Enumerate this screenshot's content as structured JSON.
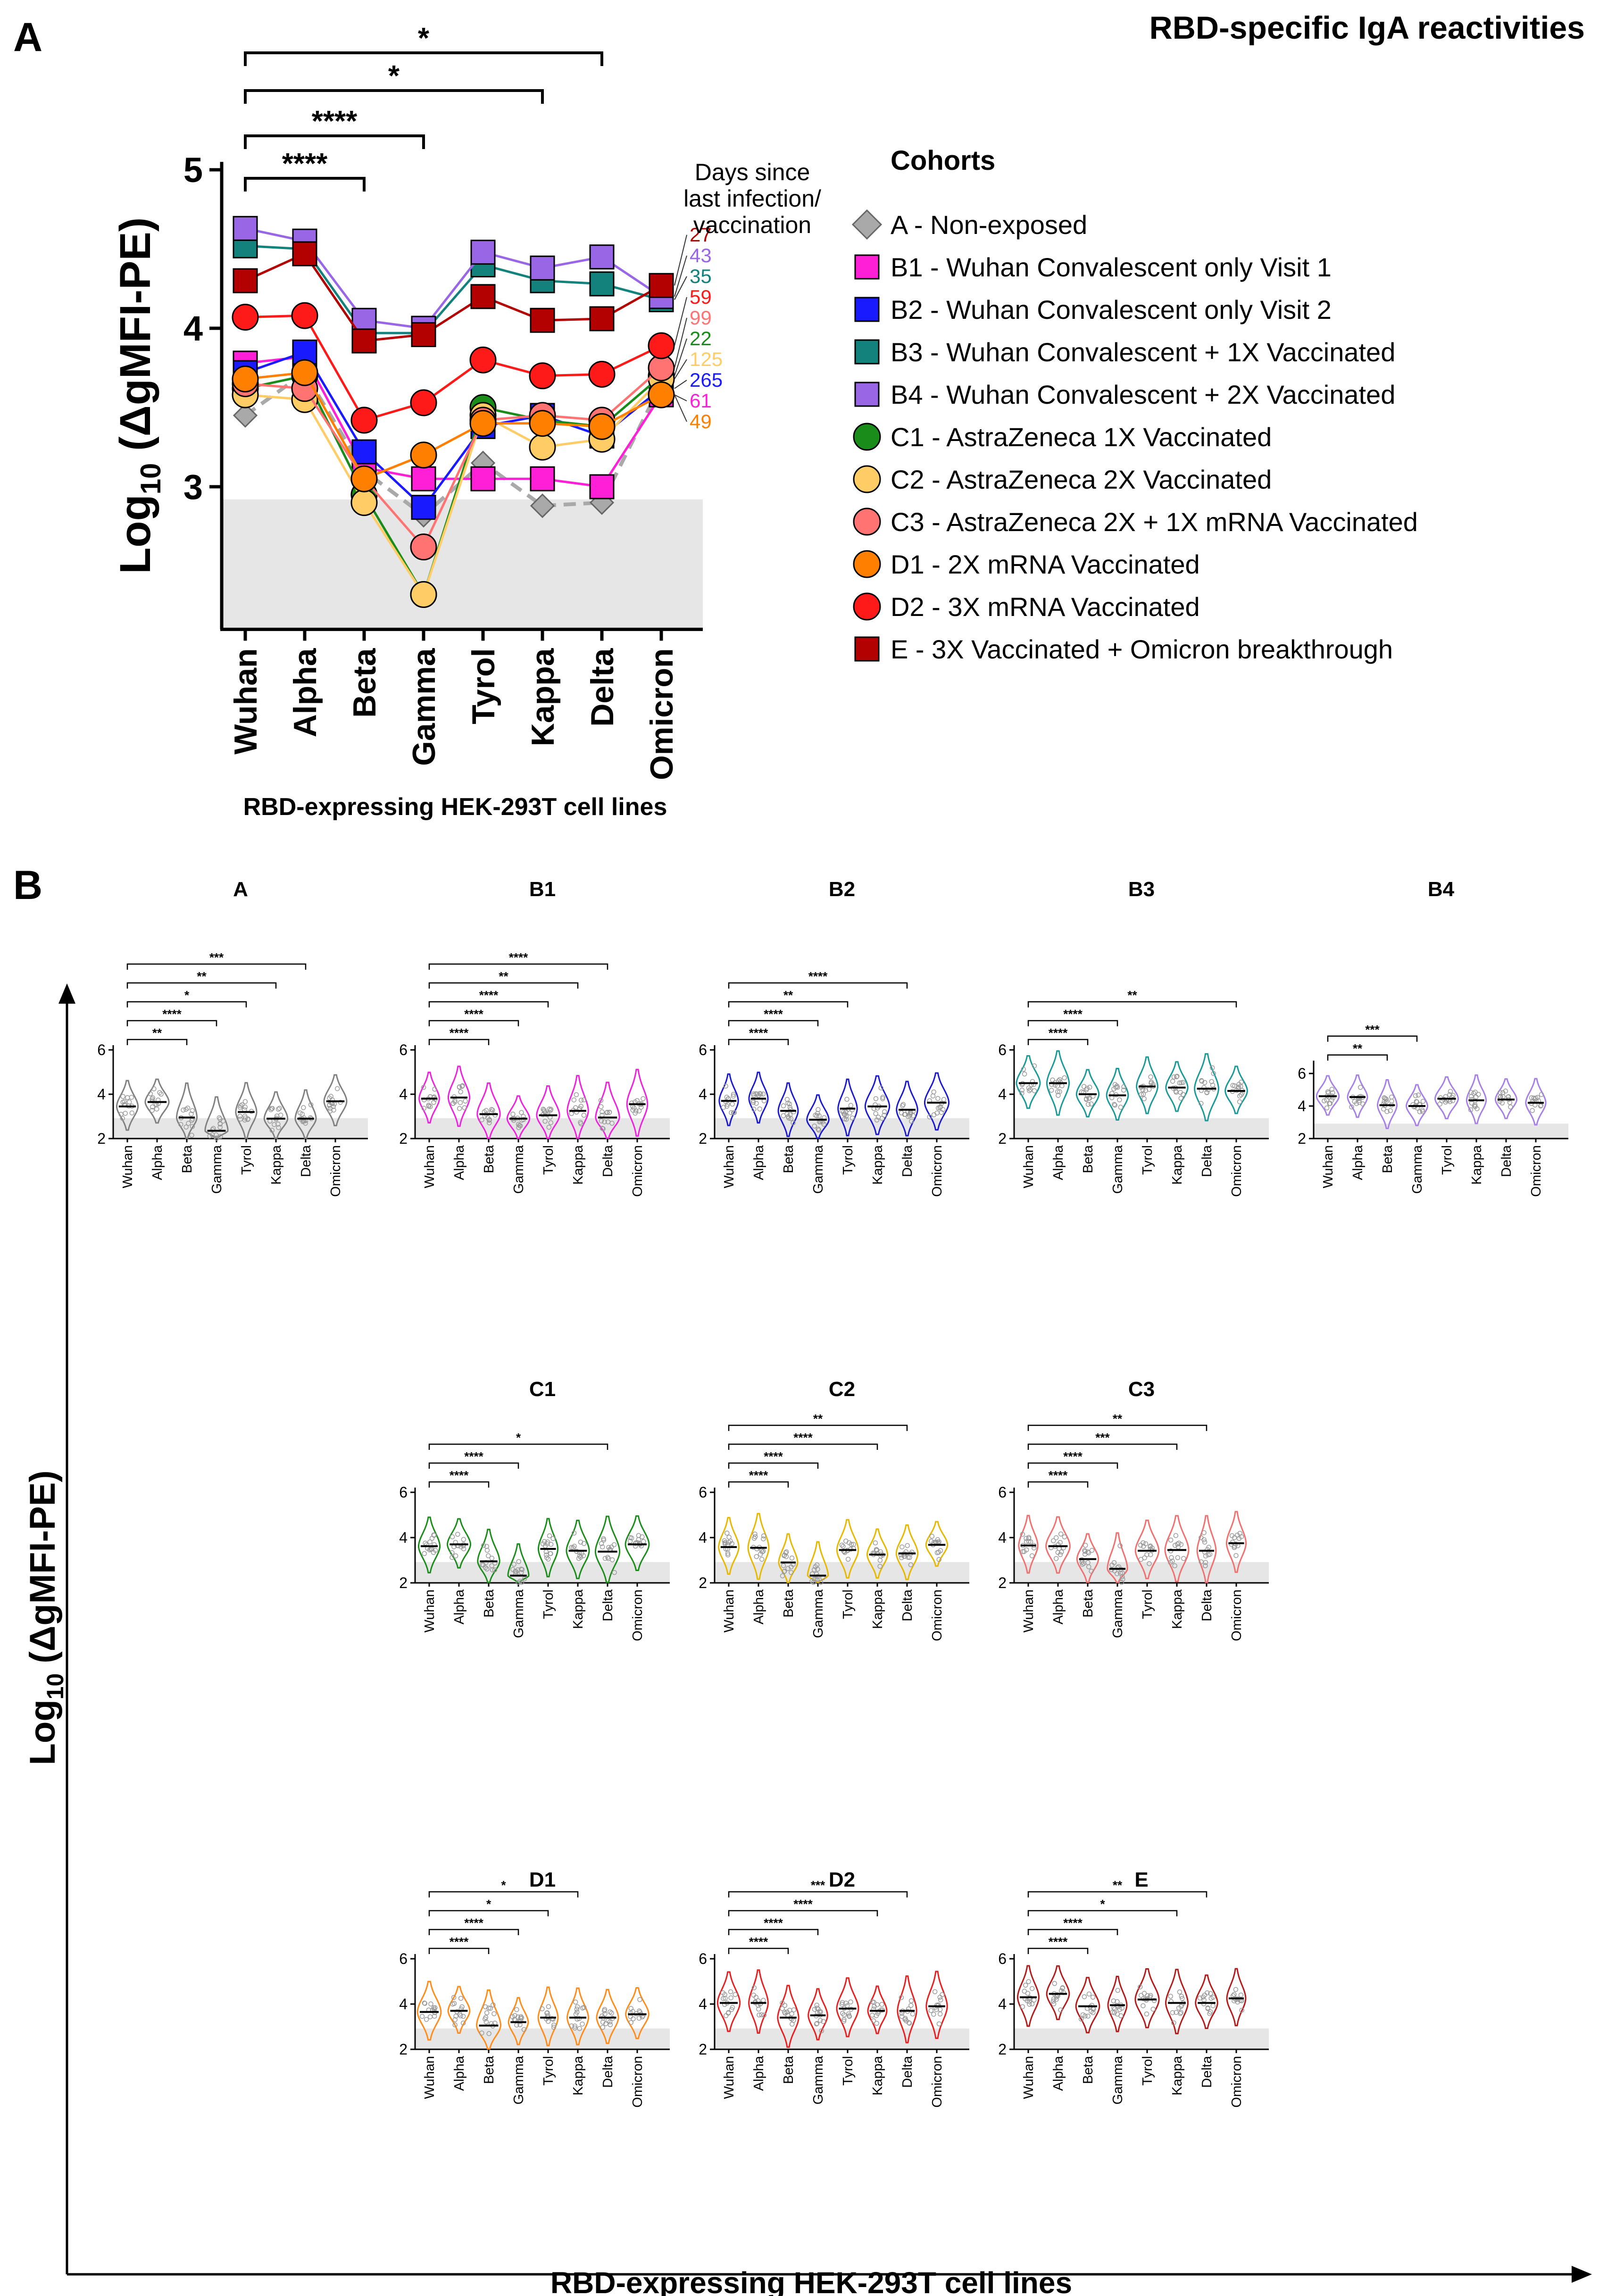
{
  "header": {
    "title": "RBD-specific IgA reactivities"
  },
  "panel_labels": {
    "a": "A",
    "b": "B"
  },
  "chart_data": [
    {
      "type": "line",
      "panel": "A",
      "title": "RBD-specific IgA reactivities",
      "xlabel": "RBD-expressing HEK-293T cell lines",
      "ylabel": "Log10 (ΔgMFI-PE)",
      "ylabel_parts": {
        "base": "Log",
        "sub": "10",
        "rest": " (ΔgMFI-PE)"
      },
      "ylim": [
        2.1,
        5.05
      ],
      "yticks": [
        "5",
        "4",
        "3"
      ],
      "yticks_values": [
        5,
        4,
        3
      ],
      "threshold": 2.92,
      "categories": [
        "Wuhan",
        "Alpha",
        "Beta",
        "Gamma",
        "Tyrol",
        "Kappa",
        "Delta",
        "Omicron"
      ],
      "days_label": [
        "Days since",
        "last infection/",
        "vaccination"
      ],
      "legend_title": "Cohorts",
      "significance": [
        {
          "from": 0,
          "to": 2,
          "label": "****"
        },
        {
          "from": 0,
          "to": 3,
          "label": "****"
        },
        {
          "from": 0,
          "to": 5,
          "label": "*"
        },
        {
          "from": 0,
          "to": 6,
          "label": "*"
        }
      ],
      "series": [
        {
          "id": "A",
          "name": "A - Non-exposed",
          "color": "#a9a9a9",
          "marker": "diamond",
          "dashed": true,
          "days": "",
          "values": [
            3.45,
            3.72,
            3.1,
            2.82,
            3.15,
            2.88,
            2.9,
            3.65
          ]
        },
        {
          "id": "B1",
          "name": "B1 - Wuhan Convalescent only Visit 1",
          "color": "#ff1fd6",
          "marker": "square",
          "dashed": false,
          "days": "61",
          "values": [
            3.78,
            3.82,
            3.12,
            3.05,
            3.05,
            3.05,
            3.0,
            3.58
          ]
        },
        {
          "id": "B2",
          "name": "B2 - Wuhan Convalescent only Visit 2",
          "color": "#1a1aff",
          "marker": "square",
          "dashed": false,
          "days": "265",
          "values": [
            3.72,
            3.85,
            3.22,
            2.87,
            3.38,
            3.45,
            3.32,
            3.62
          ]
        },
        {
          "id": "B3",
          "name": "B3 - Wuhan Convalescent + 1X Vaccinated",
          "color": "#13827c",
          "marker": "square",
          "dashed": false,
          "days": "35",
          "values": [
            4.52,
            4.5,
            3.97,
            3.97,
            4.4,
            4.3,
            4.28,
            4.18
          ]
        },
        {
          "id": "B4",
          "name": "B4 - Wuhan Convalescent + 2X Vaccinated",
          "color": "#9966e6",
          "marker": "square",
          "dashed": false,
          "days": "43",
          "values": [
            4.63,
            4.55,
            4.05,
            4.0,
            4.48,
            4.38,
            4.45,
            4.2
          ]
        },
        {
          "id": "C1",
          "name": "C1 - AstraZeneca 1X Vaccinated",
          "color": "#1a8c1a",
          "marker": "circle",
          "dashed": false,
          "days": "22",
          "values": [
            3.62,
            3.7,
            2.95,
            2.32,
            3.5,
            3.42,
            3.38,
            3.7
          ]
        },
        {
          "id": "C2",
          "name": "C2 - AstraZeneca 2X Vaccinated",
          "color": "#ffcc66",
          "marker": "circle",
          "dashed": false,
          "days": "125",
          "values": [
            3.58,
            3.55,
            2.9,
            2.32,
            3.45,
            3.25,
            3.3,
            3.68
          ]
        },
        {
          "id": "C3",
          "name": "C3 - AstraZeneca 2X + 1X mRNA Vaccinated",
          "color": "#ff7373",
          "marker": "circle",
          "dashed": false,
          "days": "99",
          "values": [
            3.65,
            3.62,
            3.05,
            2.62,
            3.42,
            3.45,
            3.42,
            3.75
          ]
        },
        {
          "id": "D1",
          "name": "D1 - 2X mRNA Vaccinated",
          "color": "#ff8000",
          "marker": "circle",
          "dashed": false,
          "days": "49",
          "values": [
            3.68,
            3.72,
            3.05,
            3.2,
            3.4,
            3.4,
            3.38,
            3.58
          ]
        },
        {
          "id": "D2",
          "name": "D2 - 3X mRNA Vaccinated",
          "color": "#ff1a1a",
          "marker": "circle",
          "dashed": false,
          "days": "59",
          "values": [
            4.07,
            4.08,
            3.42,
            3.53,
            3.8,
            3.7,
            3.71,
            3.89
          ]
        },
        {
          "id": "E",
          "name": "E - 3X Vaccinated + Omicron breakthrough",
          "color": "#b30000",
          "marker": "square",
          "dashed": false,
          "days": "27",
          "values": [
            4.3,
            4.47,
            3.92,
            3.96,
            4.2,
            4.05,
            4.06,
            4.27
          ]
        }
      ]
    },
    {
      "type": "violin",
      "panel": "B",
      "xlabel": "RBD-expressing HEK-293T cell lines",
      "ylabel": "Log10 (ΔgMFI-PE)",
      "ylabel_parts": {
        "base": "Log",
        "sub": "10",
        "rest": " (ΔgMFI-PE)"
      },
      "categories": [
        "Wuhan",
        "Alpha",
        "Beta",
        "Gamma",
        "Tyrol",
        "Kappa",
        "Delta",
        "Omicron"
      ],
      "threshold": 2.92,
      "subplots": [
        {
          "title": "A",
          "color": "#808080",
          "yticks": [
            "6",
            "4",
            "2"
          ],
          "yticks_values": [
            6,
            4,
            2
          ],
          "ylim": [
            2,
            6
          ],
          "medians": [
            3.45,
            3.65,
            2.95,
            2.35,
            3.2,
            2.9,
            2.9,
            3.68
          ],
          "significance": [
            {
              "to": 2,
              "label": "**"
            },
            {
              "to": 3,
              "label": "****"
            },
            {
              "to": 4,
              "label": "*"
            },
            {
              "to": 5,
              "label": "**"
            },
            {
              "to": 6,
              "label": "***"
            }
          ]
        },
        {
          "title": "B1",
          "color": "#ee22dd",
          "yticks": [
            "6",
            "4",
            "2"
          ],
          "yticks_values": [
            6,
            4,
            2
          ],
          "ylim": [
            2,
            6
          ],
          "medians": [
            3.8,
            3.85,
            3.1,
            2.9,
            3.05,
            3.25,
            2.95,
            3.55
          ],
          "significance": [
            {
              "to": 2,
              "label": "****"
            },
            {
              "to": 3,
              "label": "****"
            },
            {
              "to": 4,
              "label": "****"
            },
            {
              "to": 5,
              "label": "**"
            },
            {
              "to": 6,
              "label": "****"
            }
          ]
        },
        {
          "title": "B2",
          "color": "#1a1acc",
          "yticks": [
            "6",
            "4",
            "2"
          ],
          "yticks_values": [
            6,
            4,
            2
          ],
          "ylim": [
            2,
            6
          ],
          "medians": [
            3.7,
            3.8,
            3.25,
            2.85,
            3.35,
            3.45,
            3.3,
            3.62
          ],
          "significance": [
            {
              "to": 2,
              "label": "****"
            },
            {
              "to": 3,
              "label": "****"
            },
            {
              "to": 4,
              "label": "**"
            },
            {
              "to": 6,
              "label": "****"
            }
          ]
        },
        {
          "title": "B3",
          "color": "#1a9999",
          "yticks": [
            "6",
            "4",
            "2"
          ],
          "yticks_values": [
            6,
            4,
            2
          ],
          "ylim": [
            2,
            6
          ],
          "medians": [
            4.5,
            4.5,
            4.0,
            3.95,
            4.35,
            4.3,
            4.25,
            4.15
          ],
          "significance": [
            {
              "to": 2,
              "label": "****"
            },
            {
              "to": 3,
              "label": "****"
            },
            {
              "to": 7,
              "label": "**"
            }
          ]
        },
        {
          "title": "B4",
          "color": "#a680e6",
          "yticks": [
            "6",
            "4",
            "2"
          ],
          "yticks_values": [
            6,
            4,
            2
          ],
          "ylim": [
            2,
            6.5
          ],
          "medians": [
            4.6,
            4.55,
            4.05,
            4.0,
            4.45,
            4.35,
            4.4,
            4.2
          ],
          "significance": [
            {
              "to": 2,
              "label": "**"
            },
            {
              "to": 3,
              "label": "***"
            }
          ]
        },
        {
          "title": "C1",
          "color": "#1a8c1a",
          "yticks": [
            "6",
            "4",
            "2"
          ],
          "yticks_values": [
            6,
            4,
            2
          ],
          "ylim": [
            2,
            6
          ],
          "medians": [
            3.62,
            3.7,
            2.95,
            2.32,
            3.5,
            3.42,
            3.38,
            3.7
          ],
          "significance": [
            {
              "to": 2,
              "label": "****"
            },
            {
              "to": 3,
              "label": "****"
            },
            {
              "to": 6,
              "label": "*"
            }
          ]
        },
        {
          "title": "C2",
          "color": "#e6b800",
          "yticks": [
            "6",
            "4",
            "2"
          ],
          "yticks_values": [
            6,
            4,
            2
          ],
          "ylim": [
            2,
            6
          ],
          "medians": [
            3.58,
            3.55,
            2.9,
            2.32,
            3.45,
            3.25,
            3.3,
            3.68
          ],
          "significance": [
            {
              "to": 2,
              "label": "****"
            },
            {
              "to": 3,
              "label": "****"
            },
            {
              "to": 5,
              "label": "****"
            },
            {
              "to": 6,
              "label": "**"
            }
          ]
        },
        {
          "title": "C3",
          "color": "#f07070",
          "yticks": [
            "6",
            "4",
            "2"
          ],
          "yticks_values": [
            6,
            4,
            2
          ],
          "ylim": [
            2,
            6
          ],
          "medians": [
            3.65,
            3.62,
            3.05,
            2.62,
            3.42,
            3.45,
            3.42,
            3.75
          ],
          "significance": [
            {
              "to": 2,
              "label": "****"
            },
            {
              "to": 3,
              "label": "****"
            },
            {
              "to": 5,
              "label": "***"
            },
            {
              "to": 6,
              "label": "**"
            }
          ]
        },
        {
          "title": "D1",
          "color": "#ff8c1a",
          "yticks": [
            "6",
            "4",
            "2"
          ],
          "yticks_values": [
            6,
            4,
            2
          ],
          "ylim": [
            2,
            6
          ],
          "medians": [
            3.65,
            3.7,
            3.05,
            3.2,
            3.4,
            3.4,
            3.4,
            3.55
          ],
          "significance": [
            {
              "to": 2,
              "label": "****"
            },
            {
              "to": 3,
              "label": "****"
            },
            {
              "to": 4,
              "label": "*"
            },
            {
              "to": 5,
              "label": "*"
            }
          ]
        },
        {
          "title": "D2",
          "color": "#e62020",
          "yticks": [
            "6",
            "4",
            "2"
          ],
          "yticks_values": [
            6,
            4,
            2
          ],
          "ylim": [
            2,
            6
          ],
          "medians": [
            4.05,
            4.05,
            3.4,
            3.5,
            3.8,
            3.7,
            3.7,
            3.9
          ],
          "significance": [
            {
              "to": 2,
              "label": "****"
            },
            {
              "to": 3,
              "label": "****"
            },
            {
              "to": 5,
              "label": "****"
            },
            {
              "to": 6,
              "label": "***"
            }
          ]
        },
        {
          "title": "E",
          "color": "#b31a1a",
          "yticks": [
            "6",
            "4",
            "2"
          ],
          "yticks_values": [
            6,
            4,
            2
          ],
          "ylim": [
            2,
            6
          ],
          "medians": [
            4.3,
            4.45,
            3.9,
            3.95,
            4.2,
            4.05,
            4.05,
            4.25
          ],
          "significance": [
            {
              "to": 2,
              "label": "****"
            },
            {
              "to": 3,
              "label": "****"
            },
            {
              "to": 5,
              "label": "*"
            },
            {
              "to": 6,
              "label": "**"
            }
          ]
        }
      ]
    }
  ]
}
